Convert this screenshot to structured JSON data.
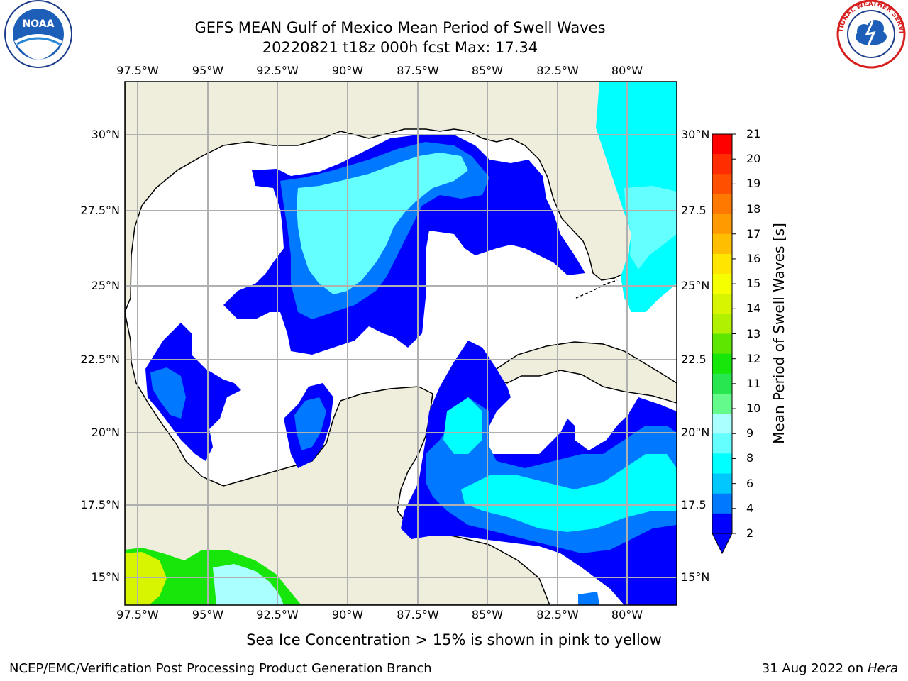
{
  "title": {
    "line1": "GEFS MEAN Gulf of Mexico Mean Period of Swell Waves",
    "line2": "20220821 t18z 000h fcst   Max: 17.34"
  },
  "logos": {
    "left": {
      "icon": "noaa-logo",
      "text": "NOAA"
    },
    "right": {
      "icon": "nws-logo",
      "text": "NATIONAL WEATHER SERVICE"
    }
  },
  "map": {
    "lon_ticks_top": [
      "97.5°W",
      "95°W",
      "92.5°W",
      "90°W",
      "87.5°W",
      "85°W",
      "82.5°W",
      "80°W"
    ],
    "lon_ticks_bottom": [
      "97.5°W",
      "95°W",
      "92.5°W",
      "90°W",
      "87.5°W",
      "85°W",
      "82.5°W",
      "80°W"
    ],
    "lat_ticks_left": [
      "30°N",
      "27.5°N",
      "25°N",
      "22.5°N",
      "20°N",
      "17.5°N",
      "15°N"
    ],
    "lat_ticks_right": [
      "30°N",
      "27.5",
      "25°N",
      "22.5",
      "20°N",
      "17.5",
      "15°N"
    ],
    "land_color": "#efeedd",
    "ocean_color": "#ffffff",
    "grid": true
  },
  "colorbar": {
    "label": "Mean Period of Swell Waves [s]",
    "ticks": [
      "21",
      "20",
      "19",
      "18",
      "17",
      "16",
      "15",
      "14",
      "13",
      "12",
      "11",
      "10",
      "9",
      "8",
      "6",
      "4",
      "2"
    ],
    "colors": [
      "#ff0000",
      "#ff2d00",
      "#ff5000",
      "#ff7800",
      "#ff9a00",
      "#ffbe00",
      "#ffe600",
      "#f5ff00",
      "#d7f500",
      "#b0f000",
      "#5fe600",
      "#17e60a",
      "#28e650",
      "#64fa8c",
      "#aaffff",
      "#64ffff",
      "#00ffff",
      "#00c8ff",
      "#0078ff",
      "#0000ff"
    ]
  },
  "ice_note": "Sea Ice Concentration > 15% is shown in pink to yellow",
  "footer": {
    "left": "NCEP/EMC/Verification Post Processing Product Generation Branch",
    "right_date": "31 Aug 2022 on",
    "right_host": "Hera"
  }
}
